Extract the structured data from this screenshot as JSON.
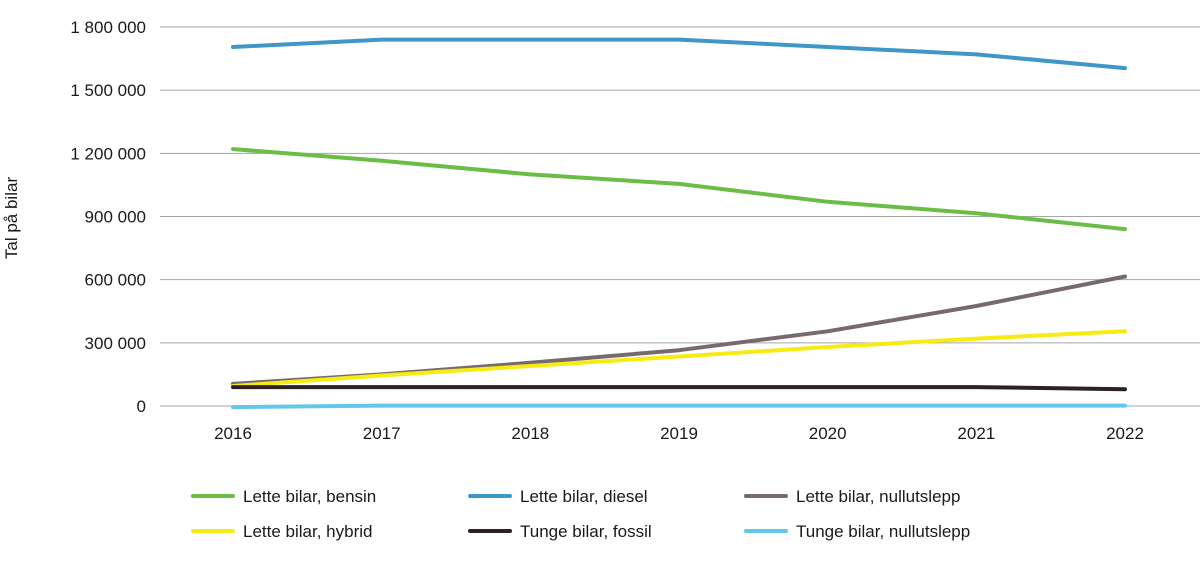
{
  "chart_data": {
    "type": "line",
    "title": "",
    "xlabel": "",
    "ylabel": "Tal på bilar",
    "categories": [
      "2016",
      "2017",
      "2018",
      "2019",
      "2020",
      "2021",
      "2022"
    ],
    "ylim": [
      0,
      1800000
    ],
    "yticks": [
      0,
      300000,
      600000,
      900000,
      1200000,
      1500000,
      1800000
    ],
    "ytick_labels": [
      "0",
      "300 000",
      "600 000",
      "900 000",
      "1 200 000",
      "1 500 000",
      "1 800 000"
    ],
    "grid": "horizontal",
    "legend_position": "bottom",
    "series": [
      {
        "name": "Lette bilar, bensin",
        "color": "#6cbd45",
        "values": [
          1220000,
          1165000,
          1100000,
          1055000,
          970000,
          915000,
          840000
        ]
      },
      {
        "name": "Lette bilar, diesel",
        "color": "#3f97c9",
        "values": [
          1705000,
          1740000,
          1740000,
          1740000,
          1705000,
          1670000,
          1605000
        ]
      },
      {
        "name": "Lette bilar, nullutslepp",
        "color": "#776a6e",
        "values": [
          105000,
          150000,
          205000,
          265000,
          355000,
          475000,
          615000
        ]
      },
      {
        "name": "Lette bilar, hybrid",
        "color": "#f6ec14",
        "values": [
          95000,
          145000,
          190000,
          235000,
          280000,
          320000,
          355000
        ]
      },
      {
        "name": "Tunge bilar, fossil",
        "color": "#2d2123",
        "values": [
          90000,
          90000,
          90000,
          90000,
          90000,
          90000,
          80000
        ]
      },
      {
        "name": "Tunge bilar, nullutslepp",
        "color": "#62c8eb",
        "values": [
          -5000,
          2000,
          2000,
          2000,
          2000,
          2000,
          2000
        ]
      }
    ]
  }
}
